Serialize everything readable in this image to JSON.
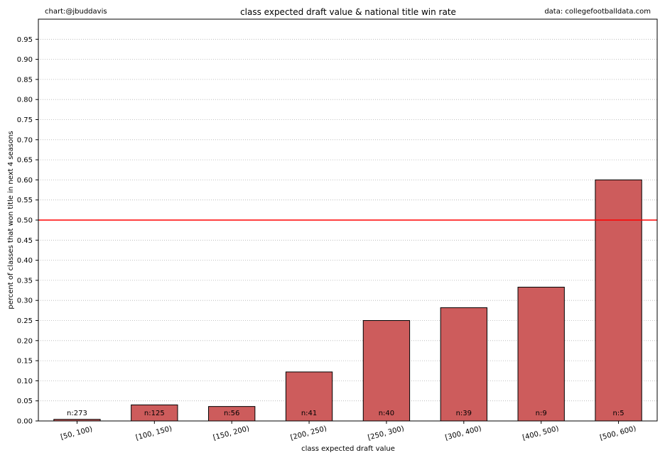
{
  "chart_data": {
    "type": "bar",
    "title": "class expected draft value & national title win rate",
    "credit_left": "chart:@jbuddavis",
    "credit_right": "data: collegefootballdata.com",
    "xlabel": "class expected draft value",
    "ylabel": "percent of classes that won title in next 4 seasons",
    "categories": [
      "[50, 100)",
      "[100, 150)",
      "[150, 200)",
      "[200, 250)",
      "[250, 300)",
      "[300, 400)",
      "[400, 500)",
      "[500, 600)"
    ],
    "values": [
      0.004,
      0.04,
      0.036,
      0.122,
      0.25,
      0.282,
      0.333,
      0.6
    ],
    "bar_labels": [
      "n:273",
      "n:125",
      "n:56",
      "n:41",
      "n:40",
      "n:39",
      "n:9",
      "n:5"
    ],
    "ylim": [
      0,
      1.0
    ],
    "yticks": [
      "0.00",
      "0.05",
      "0.10",
      "0.15",
      "0.20",
      "0.25",
      "0.30",
      "0.35",
      "0.40",
      "0.45",
      "0.50",
      "0.55",
      "0.60",
      "0.65",
      "0.70",
      "0.75",
      "0.80",
      "0.85",
      "0.90",
      "0.95"
    ],
    "reference_line": 0.5,
    "grid": "horizontal dotted",
    "colors": {
      "bar_fill": "#cd5c5c",
      "bar_edge": "#000000",
      "reference_line": "#ff0000",
      "grid": "#b0b0b0"
    }
  }
}
